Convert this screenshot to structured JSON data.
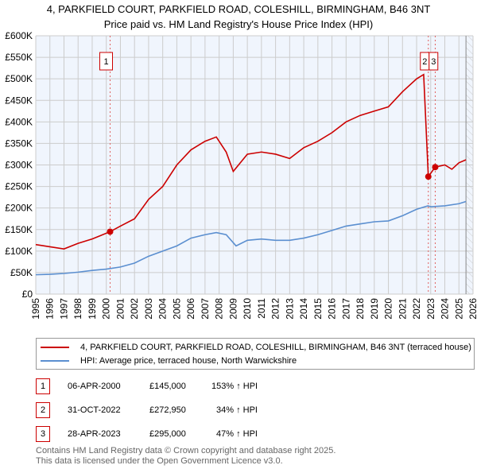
{
  "chart_data": {
    "type": "line",
    "title": "4, PARKFIELD COURT, PARKFIELD ROAD, COLESHILL, BIRMINGHAM, B46 3NT",
    "subtitle": "Price paid vs. HM Land Registry's House Price Index (HPI)",
    "xlim": [
      1995,
      2026
    ],
    "ylim": [
      0,
      600000
    ],
    "x_ticks": [
      "1995",
      "1996",
      "1997",
      "1998",
      "1999",
      "2000",
      "2001",
      "2002",
      "2003",
      "2004",
      "2005",
      "2006",
      "2007",
      "2008",
      "2009",
      "2010",
      "2011",
      "2012",
      "2013",
      "2014",
      "2015",
      "2016",
      "2017",
      "2018",
      "2019",
      "2020",
      "2021",
      "2022",
      "2023",
      "2024",
      "2025",
      "2026"
    ],
    "y_ticks": [
      {
        "v": 0,
        "l": "£0"
      },
      {
        "v": 50000,
        "l": "£50K"
      },
      {
        "v": 100000,
        "l": "£100K"
      },
      {
        "v": 150000,
        "l": "£150K"
      },
      {
        "v": 200000,
        "l": "£200K"
      },
      {
        "v": 250000,
        "l": "£250K"
      },
      {
        "v": 300000,
        "l": "£300K"
      },
      {
        "v": 350000,
        "l": "£350K"
      },
      {
        "v": 400000,
        "l": "£400K"
      },
      {
        "v": 450000,
        "l": "£450K"
      },
      {
        "v": 500000,
        "l": "£500K"
      },
      {
        "v": 550000,
        "l": "£550K"
      },
      {
        "v": 600000,
        "l": "£600K"
      }
    ],
    "grid": true,
    "series": [
      {
        "name": "4, PARKFIELD COURT, PARKFIELD ROAD, COLESHILL, BIRMINGHAM, B46 3NT (terraced house)",
        "color": "#cc0000",
        "x": [
          1995,
          1996,
          1997,
          1998,
          1999,
          2000.27,
          2001,
          2002,
          2003,
          2004,
          2005,
          2006,
          2007,
          2007.8,
          2008.5,
          2009,
          2010,
          2011,
          2012,
          2013,
          2014,
          2015,
          2016,
          2017,
          2018,
          2019,
          2020,
          2021,
          2022,
          2022.5,
          2022.83,
          2023.32,
          2024,
          2024.5,
          2025,
          2025.5
        ],
        "y": [
          115000,
          110000,
          105000,
          118000,
          128000,
          145000,
          158000,
          175000,
          220000,
          250000,
          300000,
          335000,
          355000,
          365000,
          330000,
          285000,
          325000,
          330000,
          325000,
          315000,
          340000,
          355000,
          375000,
          400000,
          415000,
          425000,
          435000,
          470000,
          500000,
          510000,
          272950,
          295000,
          300000,
          290000,
          305000,
          312000
        ]
      },
      {
        "name": "HPI: Average price, terraced house, North Warwickshire",
        "color": "#5b8fd0",
        "x": [
          1995,
          1996,
          1997,
          1998,
          1999,
          2000,
          2001,
          2002,
          2003,
          2004,
          2005,
          2006,
          2007,
          2007.8,
          2008.5,
          2009.2,
          2010,
          2011,
          2012,
          2013,
          2014,
          2015,
          2016,
          2017,
          2018,
          2019,
          2020,
          2021,
          2022,
          2022.8,
          2023,
          2024,
          2025,
          2025.5
        ],
        "y": [
          45000,
          46000,
          48000,
          51000,
          55000,
          58000,
          63000,
          72000,
          88000,
          100000,
          112000,
          130000,
          138000,
          143000,
          138000,
          112000,
          125000,
          128000,
          125000,
          125000,
          130000,
          138000,
          148000,
          158000,
          163000,
          168000,
          170000,
          182000,
          197000,
          205000,
          203000,
          205000,
          210000,
          215000
        ]
      }
    ],
    "sales": [
      {
        "label": "1",
        "date": "06-APR-2000",
        "x": 2000.27,
        "price": "£145,000",
        "value": 145000,
        "hpi": "153% ↑ HPI"
      },
      {
        "label": "2",
        "date": "31-OCT-2022",
        "x": 2022.83,
        "price": "£272,950",
        "value": 272950,
        "hpi": "34% ↑ HPI"
      },
      {
        "label": "3",
        "date": "28-APR-2023",
        "x": 2023.32,
        "price": "£295,000",
        "value": 295000,
        "hpi": "47% ↑ HPI"
      }
    ],
    "forecast_start": 2025.5
  },
  "footer": {
    "line1": "Contains HM Land Registry data © Crown copyright and database right 2025.",
    "line2": "This data is licensed under the Open Government Licence v3.0."
  }
}
